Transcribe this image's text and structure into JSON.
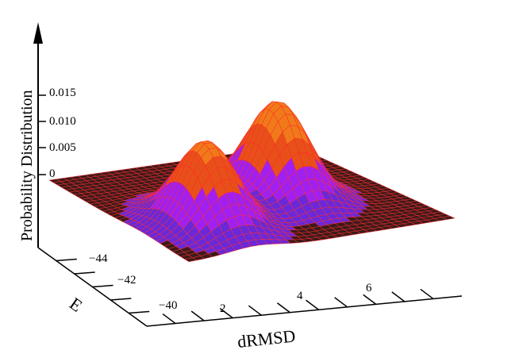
{
  "chart_data": {
    "type": "surface",
    "ylabel": "Probability Distribution",
    "z_ticks": [
      "0.015",
      "0.010",
      "0.005",
      "0"
    ],
    "z_range": [
      0,
      0.016
    ],
    "x_axis": {
      "label": "dRMSD",
      "ticks": [
        "2",
        "4",
        "6"
      ],
      "range": [
        0,
        8
      ]
    },
    "y_axis": {
      "label": "E",
      "ticks": [
        "−44",
        "−42",
        "−40"
      ],
      "range": [
        -45,
        -39
      ]
    },
    "peaks": [
      {
        "dRMSD": 2.0,
        "E": -43.0,
        "probability": 0.014
      },
      {
        "dRMSD": 5.0,
        "E": -42.0,
        "probability": 0.016
      }
    ],
    "colors": {
      "floor": "#3a1a1a",
      "mesh": "#ff2a2a",
      "low": "#6a28d8",
      "mid": "#a020f0",
      "high": "#e8501a",
      "top": "#f07a1a"
    }
  }
}
